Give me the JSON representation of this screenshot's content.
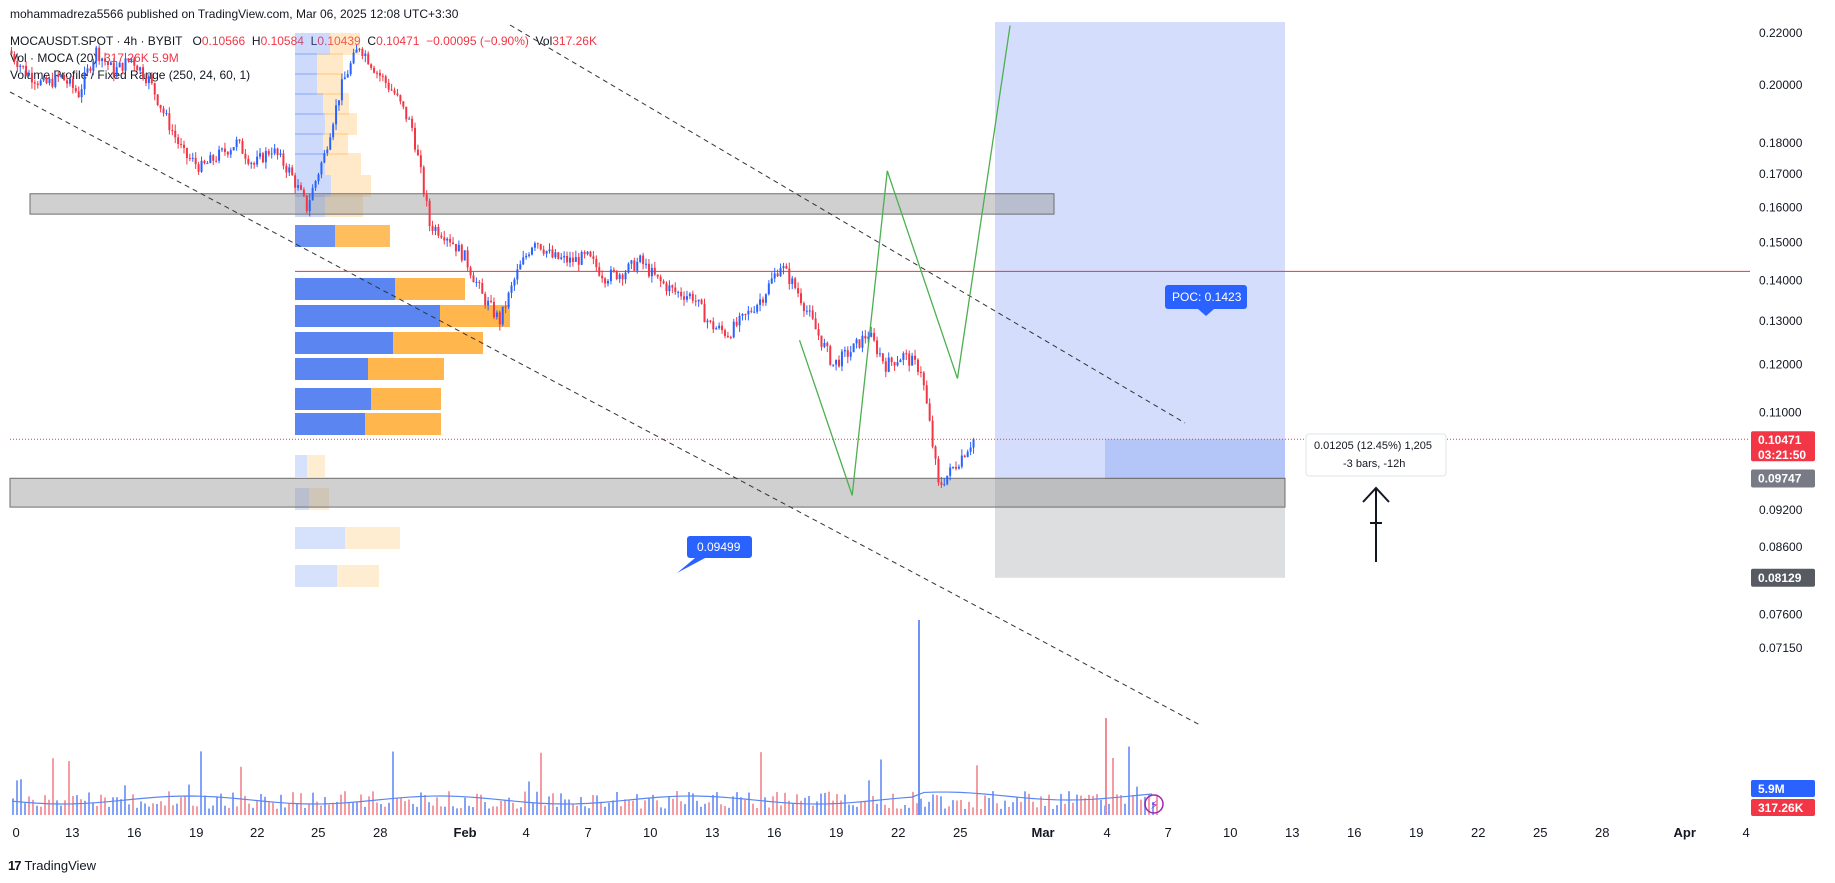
{
  "publisher": "mohammadreza5566 published on TradingView.com, Mar 06, 2025 12:08 UTC+3:30",
  "legend": {
    "symbol": "MOCAUSDT.SPOT · 4h · BYBIT",
    "o_label": "O",
    "o": "0.10566",
    "h_label": "H",
    "h": "0.10584",
    "l_label": "L",
    "l": "0.10439",
    "c_label": "C",
    "c": "0.10471",
    "change": "−0.00095 (−0.90%)",
    "vol_label": "Vol",
    "vol": "317.26K",
    "vol_indicator": "Vol · MOCA (20)",
    "vol_values": "317.26K  5.9M",
    "vp_indicator": "Volume Profile / Fixed Range (250, 24, 60, 1)"
  },
  "footer": {
    "logo": "17",
    "brand": "TradingView"
  },
  "colors": {
    "up": "#2962ff",
    "down": "#f23645",
    "poc": "#e53935",
    "zone": "#a9a9a9",
    "projection": "#c5d3fb",
    "green": "#4caf50",
    "vp_up": "#5b86f2",
    "vp_down": "#ffb74d"
  },
  "chart_data": {
    "type": "candlestick",
    "y_scale": "log",
    "ylim": [
      0.0705,
      0.223
    ],
    "y_ticks": [
      "0.22000",
      "0.20000",
      "0.18000",
      "0.17000",
      "0.16000",
      "0.15000",
      "0.14000",
      "0.13000",
      "0.12000",
      "0.11000",
      "0.09200",
      "0.08600",
      "0.07600",
      "0.07150"
    ],
    "x_ticks": [
      "0",
      "13",
      "16",
      "19",
      "22",
      "25",
      "28",
      "Feb",
      "4",
      "7",
      "10",
      "13",
      "16",
      "19",
      "22",
      "25",
      "Mar",
      "4",
      "7",
      "10",
      "13",
      "16",
      "19",
      "22",
      "25",
      "28",
      "Apr",
      "4"
    ],
    "close_path": [
      [
        "Jan 10",
        0.213
      ],
      [
        "Jan 11",
        0.205
      ],
      [
        "Jan 12",
        0.2
      ],
      [
        "Jan 13",
        0.203
      ],
      [
        "Jan 14",
        0.197
      ],
      [
        "Jan 15",
        0.213
      ],
      [
        "Jan 16",
        0.205
      ],
      [
        "Jan 17",
        0.21
      ],
      [
        "Jan 18",
        0.202
      ],
      [
        "Jan 19",
        0.188
      ],
      [
        "Jan 20",
        0.176
      ],
      [
        "Jan 21",
        0.172
      ],
      [
        "Jan 22",
        0.176
      ],
      [
        "Jan 23",
        0.18
      ],
      [
        "Jan 24",
        0.173
      ],
      [
        "Jan 25",
        0.178
      ],
      [
        "Jan 26",
        0.171
      ],
      [
        "Jan 27",
        0.16
      ],
      [
        "Jan 28",
        0.176
      ],
      [
        "Jan 29",
        0.2
      ],
      [
        "Jan 30",
        0.215
      ],
      [
        "Jan 31",
        0.205
      ],
      [
        "Feb 1",
        0.197
      ],
      [
        "Feb 2",
        0.185
      ],
      [
        "Feb 3",
        0.155
      ],
      [
        "Feb 4",
        0.152
      ],
      [
        "Feb 5",
        0.146
      ],
      [
        "Feb 6",
        0.136
      ],
      [
        "Feb 7",
        0.13
      ],
      [
        "Feb 8",
        0.142
      ],
      [
        "Feb 9",
        0.151
      ],
      [
        "Feb 10",
        0.146
      ],
      [
        "Feb 11",
        0.145
      ],
      [
        "Feb 12",
        0.146
      ],
      [
        "Feb 13",
        0.141
      ],
      [
        "Feb 14",
        0.142
      ],
      [
        "Feb 15",
        0.145
      ],
      [
        "Feb 16",
        0.14
      ],
      [
        "Feb 17",
        0.137
      ],
      [
        "Feb 18",
        0.136
      ],
      [
        "Feb 19",
        0.129
      ],
      [
        "Feb 20",
        0.127
      ],
      [
        "Feb 21",
        0.131
      ],
      [
        "Feb 22",
        0.136
      ],
      [
        "Feb 23",
        0.144
      ],
      [
        "Feb 24",
        0.137
      ],
      [
        "Feb 25",
        0.128
      ],
      [
        "Feb 26",
        0.12
      ],
      [
        "Feb 27",
        0.123
      ],
      [
        "Feb 28",
        0.127
      ],
      [
        "Mar 1",
        0.12
      ],
      [
        "Mar 2",
        0.122
      ],
      [
        "Mar 3",
        0.119
      ],
      [
        "Mar 4",
        0.096
      ],
      [
        "Mar 5",
        0.1
      ],
      [
        "Mar 6",
        0.1047
      ]
    ],
    "volume_profile": {
      "poc_label": "POC: 0.1423",
      "poc": 0.1423,
      "from": "Jan 25",
      "to": "Feb 5"
    },
    "volume": {
      "indicator": "Vol · MOCA (20)",
      "ma_value": "5.9M",
      "last": "317.26K"
    },
    "annotations": {
      "callout": "0.09499",
      "measure_line1": "0.01205 (12.45%) 1,205",
      "measure_line2": "-3 bars, -12h"
    },
    "price_labels": {
      "last_price": "0.10471",
      "countdown": "03:21:50",
      "entry": "0.09747",
      "stop": "0.08129",
      "vol_ma": "5.9M",
      "vol_last": "317.26K"
    },
    "zones": [
      {
        "name": "resistance-zone",
        "low": 0.158,
        "high": 0.164
      },
      {
        "name": "support-zone",
        "low": 0.0925,
        "high": 0.0975
      }
    ],
    "position": {
      "entry": 0.09747,
      "stop": 0.08129,
      "target": 0.223,
      "stop_low": 0.08129,
      "current": 0.10471
    },
    "green_projection": [
      [
        "Feb 24",
        0.1255
      ],
      [
        "Feb 27",
        0.0945
      ],
      [
        "Mar 1",
        0.171
      ],
      [
        "Mar 5",
        0.117
      ],
      [
        "Mar 8",
        0.223
      ]
    ]
  }
}
